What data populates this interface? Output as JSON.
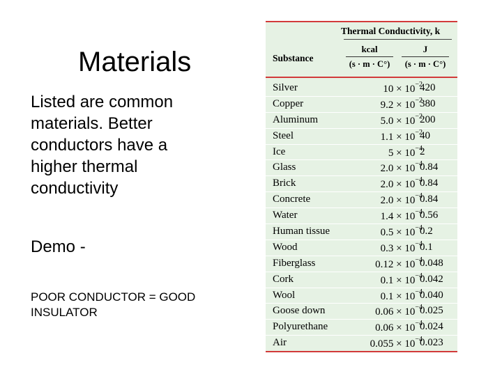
{
  "slide": {
    "title": "Materials",
    "intro": "Listed are common materials.  Better conductors have a higher thermal conductivity",
    "demo": "Demo -",
    "footer": "POOR CONDUCTOR = GOOD INSULATOR"
  },
  "table": {
    "group_header": "Thermal Conductivity, k",
    "substance_header": "Substance",
    "unit_kcal": {
      "numerator": "kcal",
      "denominator": "(s · m · C°)"
    },
    "unit_j": {
      "numerator": "J",
      "denominator": "(s · m · C°)"
    },
    "rows": [
      {
        "substance": "Silver",
        "mantissa": "10",
        "exponent": "−2",
        "j": "420"
      },
      {
        "substance": "Copper",
        "mantissa": "9.2",
        "exponent": "−2",
        "j": "380"
      },
      {
        "substance": "Aluminum",
        "mantissa": "5.0",
        "exponent": "−2",
        "j": "200"
      },
      {
        "substance": "Steel",
        "mantissa": "1.1",
        "exponent": "−2",
        "j": "40"
      },
      {
        "substance": "Ice",
        "mantissa": "5",
        "exponent": "−4",
        "j": "2"
      },
      {
        "substance": "Glass",
        "mantissa": "2.0",
        "exponent": "−4",
        "j": "0.84"
      },
      {
        "substance": "Brick",
        "mantissa": "2.0",
        "exponent": "−4",
        "j": "0.84"
      },
      {
        "substance": "Concrete",
        "mantissa": "2.0",
        "exponent": "−4",
        "j": "0.84"
      },
      {
        "substance": "Water",
        "mantissa": "1.4",
        "exponent": "−4",
        "j": "0.56"
      },
      {
        "substance": "Human tissue",
        "mantissa": "0.5",
        "exponent": "−4",
        "j": "0.2"
      },
      {
        "substance": "Wood",
        "mantissa": "0.3",
        "exponent": "−4",
        "j": "0.1"
      },
      {
        "substance": "Fiberglass",
        "mantissa": "0.12",
        "exponent": "−4",
        "j": "0.048"
      },
      {
        "substance": "Cork",
        "mantissa": "0.1",
        "exponent": "−4",
        "j": "0.042"
      },
      {
        "substance": "Wool",
        "mantissa": "0.1",
        "exponent": "−4",
        "j": "0.040"
      },
      {
        "substance": "Goose down",
        "mantissa": "0.06",
        "exponent": "−4",
        "j": "0.025"
      },
      {
        "substance": "Polyurethane",
        "mantissa": "0.06",
        "exponent": "−4",
        "j": "0.024"
      },
      {
        "substance": "Air",
        "mantissa": "0.055",
        "exponent": "−4",
        "j": "0.023"
      }
    ]
  },
  "colors": {
    "table_bg": "#e6f2e4",
    "rule": "#d23a3a"
  }
}
